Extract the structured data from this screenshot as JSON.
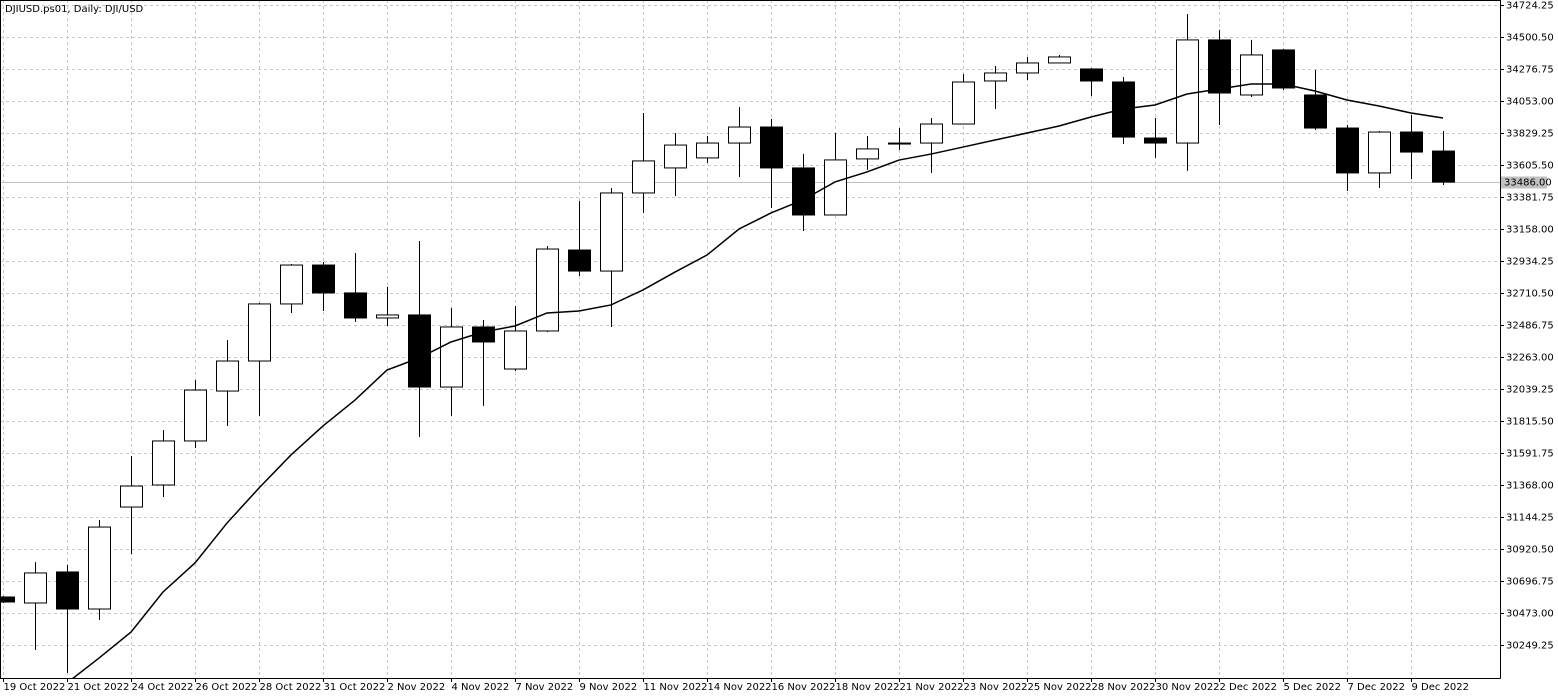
{
  "chart_data": {
    "type": "candlestick",
    "title": "DJIUSD.ps01, Daily:  DJI/USD",
    "categories": [
      "19 Oct 2022",
      null,
      "21 Oct 2022",
      null,
      "24 Oct 2022",
      null,
      "26 Oct 2022",
      null,
      "28 Oct 2022",
      null,
      "31 Oct 2022",
      null,
      "2 Nov 2022",
      null,
      "4 Nov 2022",
      null,
      "7 Nov 2022",
      null,
      "9 Nov 2022",
      null,
      "11 Nov 2022",
      null,
      "14 Nov 2022",
      null,
      "16 Nov 2022",
      null,
      "18 Nov 2022",
      null,
      "21 Nov 2022",
      null,
      "23 Nov 2022",
      null,
      "25 Nov 2022",
      null,
      "28 Nov 2022",
      null,
      "30 Nov 2022",
      null,
      "2 Dec 2022",
      null,
      "5 Dec 2022",
      null,
      "7 Dec 2022",
      null,
      "9 Dec 2022",
      null
    ],
    "open": [
      30585,
      30543,
      30760,
      30501,
      31214,
      31368,
      31676,
      32025,
      32235,
      32634,
      32906,
      32711,
      32536,
      32557,
      32053,
      32473,
      32179,
      32445,
      33011,
      32864,
      33410,
      33585,
      33655,
      33759,
      33871,
      33585,
      33256,
      33648,
      33759,
      33759,
      33892,
      34193,
      34249,
      34319,
      34277,
      34186,
      33794,
      33759,
      34480,
      34095,
      34410,
      34095,
      33864,
      33550,
      33836,
      33703
    ],
    "high": [
      30592,
      30829,
      30809,
      31123,
      31571,
      31753,
      32102,
      32382,
      32641,
      32913,
      32927,
      32990,
      32753,
      33074,
      32606,
      32522,
      32620,
      33039,
      33354,
      33445,
      33969,
      33829,
      33808,
      34011,
      33927,
      33683,
      33829,
      33808,
      33864,
      33934,
      34242,
      34298,
      34361,
      34375,
      34284,
      34221,
      33934,
      34661,
      34550,
      34480,
      34417,
      34270,
      33885,
      33843,
      33955,
      33843
    ],
    "low": [
      30543,
      30214,
      30054,
      30424,
      30886,
      31284,
      31627,
      31781,
      31851,
      32571,
      32585,
      32508,
      32480,
      31704,
      31851,
      31921,
      32165,
      32438,
      32829,
      32473,
      33270,
      33389,
      33620,
      33522,
      33305,
      33144,
      33256,
      33571,
      33710,
      33550,
      33892,
      33997,
      34200,
      34319,
      34088,
      33752,
      33655,
      33564,
      33885,
      34081,
      34130,
      33850,
      33424,
      33445,
      33508,
      33466
    ],
    "close": [
      30550,
      30753,
      30501,
      31074,
      31361,
      31676,
      32032,
      32235,
      32634,
      32906,
      32711,
      32536,
      32557,
      32053,
      32473,
      32368,
      32445,
      33018,
      32864,
      33410,
      33634,
      33745,
      33759,
      33871,
      33585,
      33256,
      33641,
      33718,
      33759,
      33892,
      34186,
      34249,
      34319,
      34361,
      34193,
      33801,
      33759,
      34480,
      34109,
      34375,
      34144,
      33864,
      33550,
      33836,
      33696,
      33486
    ],
    "moving_average": [
      null,
      null,
      29984,
      30158,
      30340,
      30620,
      30823,
      31102,
      31347,
      31578,
      31781,
      31962,
      32172,
      32256,
      32368,
      32438,
      32480,
      32571,
      32585,
      32627,
      32732,
      32857,
      32976,
      33158,
      33270,
      33361,
      33487,
      33557,
      33640,
      33682,
      33731,
      33780,
      33829,
      33878,
      33941,
      33997,
      34025,
      34102,
      34137,
      34172,
      34172,
      34123,
      34060,
      34018,
      33969,
      33934
    ],
    "up_color": "#ffffff",
    "down_color": "#000000",
    "ma_color": "#000000",
    "grid": true,
    "grid_color": "#c8c8c8",
    "ylim": [
      30018.6,
      34759.2
    ],
    "yticks": [
      34724.25,
      {
        "value": 34500.5,
        "label": "34500.50"
      },
      34276.75,
      {
        "value": 34053,
        "label": "34053.00"
      },
      33829.25,
      {
        "value": 33605.5,
        "label": "33605.50"
      },
      33381.75,
      {
        "value": 33158,
        "label": "33158.00"
      },
      32934.25,
      {
        "value": 32710.5,
        "label": "32710.50"
      },
      32486.75,
      {
        "value": 32263,
        "label": "32263.00"
      },
      32039.25,
      {
        "value": 31815.5,
        "label": "31815.50"
      },
      31591.75,
      {
        "value": 31368,
        "label": "31368.00"
      },
      31144.25,
      {
        "value": 30920.5,
        "label": "30920.50"
      },
      30696.75,
      {
        "value": 30473,
        "label": "30473.00"
      },
      30249.25
    ],
    "current_price": {
      "value": 33486,
      "label": "33486.00"
    }
  }
}
